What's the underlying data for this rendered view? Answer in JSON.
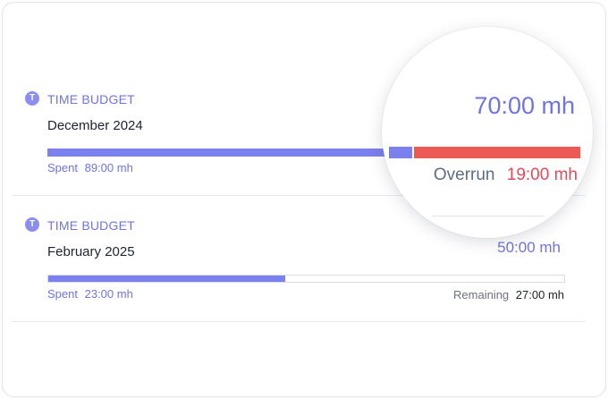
{
  "budgets": [
    {
      "tag_icon_glyph": "T",
      "tag": "TIME BUDGET",
      "period": "December 2024",
      "spent_label": "Spent",
      "spent_value": "89:00 mh",
      "total": "70:00 mh",
      "overrun_label": "Overrun",
      "overrun_value": "19:00 mh",
      "progress_fraction": 1.0,
      "status": "overrun"
    },
    {
      "tag_icon_glyph": "T",
      "tag": "TIME BUDGET",
      "period": "February 2025",
      "spent_label": "Spent",
      "spent_value": "23:00 mh",
      "total": "50:00 mh",
      "remaining_label": "Remaining",
      "remaining_value": "27:00 mh",
      "progress_fraction": 0.46,
      "status": "within"
    }
  ],
  "colors": {
    "accent": "#6f73e6",
    "bar_fill": "#7c80ee",
    "overrun": "#ec5a55",
    "overrun_text": "#e8495a"
  },
  "icons": {
    "tag": "time-budget-icon"
  }
}
